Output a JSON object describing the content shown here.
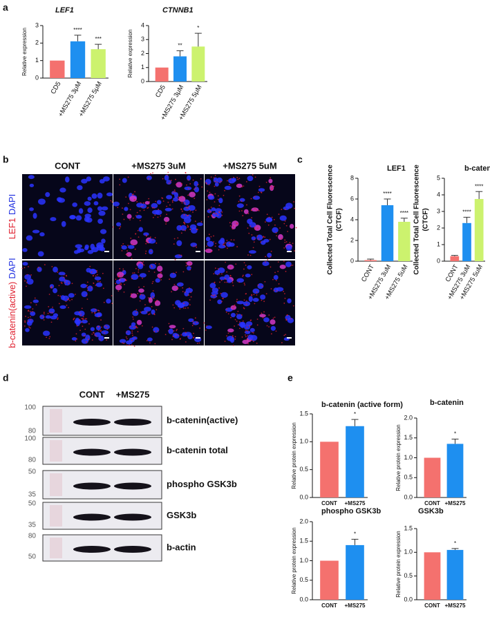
{
  "panels": [
    "a",
    "b",
    "c",
    "d",
    "e"
  ],
  "microscopy": {
    "columns": [
      "CONT",
      "+MS275 3uM",
      "+MS275 5uM"
    ],
    "rows": [
      [
        "LEF1",
        "DAPI"
      ],
      [
        "b-catenin(active)",
        "DAPI"
      ]
    ]
  },
  "blot": {
    "columns": [
      "CONT",
      "+MS275"
    ],
    "rows": [
      {
        "label": "b-catenin(active)",
        "markers": [
          100,
          80
        ]
      },
      {
        "label": "b-catenin total",
        "markers": [
          100,
          80
        ]
      },
      {
        "label": "phospho GSK3b",
        "markers": [
          50,
          35
        ]
      },
      {
        "label": "GSK3b",
        "markers": [
          50,
          35
        ]
      },
      {
        "label": "b-actin",
        "markers": [
          80,
          50
        ]
      }
    ]
  },
  "chart_data": [
    {
      "type": "bar",
      "title": "LEF1",
      "title_italic": true,
      "ylabel": "Relative expression",
      "categories": [
        "CD5",
        "+MS275 3μM",
        "+MS275 5μM"
      ],
      "values": [
        1,
        2.1,
        1.65
      ],
      "errors": [
        0,
        0.35,
        0.28
      ],
      "annotations": [
        null,
        "****",
        "***"
      ],
      "colors": [
        "#f4716e",
        "#1e8ff0",
        "#ccf26e"
      ],
      "ylim": [
        0,
        3
      ],
      "yticks": [
        0,
        1,
        2,
        3
      ]
    },
    {
      "type": "bar",
      "title": "CTNNB1",
      "title_italic": true,
      "ylabel": "Relative expression",
      "categories": [
        "CD5",
        "+MS275 3μM",
        "+MS275 5μM"
      ],
      "values": [
        1,
        1.8,
        2.5
      ],
      "errors": [
        0,
        0.4,
        0.95
      ],
      "annotations": [
        null,
        "**",
        "*"
      ],
      "colors": [
        "#f4716e",
        "#1e8ff0",
        "#ccf26e"
      ],
      "ylim": [
        0,
        4
      ],
      "yticks": [
        0,
        1,
        2,
        3,
        4
      ]
    },
    {
      "type": "bar",
      "title": "LEF1",
      "title_italic": false,
      "ylabel": [
        "Collected Total Cell Fluorescence",
        "(CTCF)"
      ],
      "categories": [
        "CONT",
        "+MS275 3uM",
        "+MS275 5uM"
      ],
      "values": [
        0.1,
        5.4,
        3.8
      ],
      "errors": [
        0.1,
        0.6,
        0.35
      ],
      "annotations": [
        null,
        "****",
        "****"
      ],
      "colors": [
        "#f4716e",
        "#1e8ff0",
        "#ccf26e"
      ],
      "ylim": [
        0,
        8
      ],
      "yticks": [
        0,
        2,
        4,
        6,
        8
      ]
    },
    {
      "type": "bar",
      "title": "b-catenin",
      "title_italic": false,
      "ylabel": [
        "Collected Total Cell Fluorescence",
        "(CTCF)"
      ],
      "categories": [
        "CONT",
        "+MS275 3uM",
        "+MS275 5uM"
      ],
      "values": [
        0.3,
        2.3,
        3.75
      ],
      "errors": [
        0.05,
        0.35,
        0.45
      ],
      "annotations": [
        null,
        "****",
        "****"
      ],
      "colors": [
        "#f4716e",
        "#1e8ff0",
        "#ccf26e"
      ],
      "ylim": [
        0,
        5
      ],
      "yticks": [
        0,
        1,
        2,
        3,
        4,
        5
      ]
    },
    {
      "type": "bar",
      "title": "b-catenin (active form)",
      "title_italic": false,
      "ylabel": "Relative protein expression",
      "categories": [
        "CONT",
        "+MS275"
      ],
      "values": [
        1,
        1.28
      ],
      "errors": [
        0,
        0.12
      ],
      "annotations": [
        null,
        "*"
      ],
      "colors": [
        "#f4716e",
        "#1e8ff0"
      ],
      "ylim": [
        0,
        1.5
      ],
      "yticks": [
        {
          "value": 0,
          "label": "0.0"
        },
        0.5,
        {
          "value": 1,
          "label": "1.0"
        },
        1.5
      ]
    },
    {
      "type": "bar",
      "title": "b-catenin",
      "title_italic": false,
      "ylabel": "Relative protein expression",
      "categories": [
        "CONT",
        "+MS275"
      ],
      "values": [
        1,
        1.35
      ],
      "errors": [
        0,
        0.12
      ],
      "annotations": [
        null,
        "*"
      ],
      "colors": [
        "#f4716e",
        "#1e8ff0"
      ],
      "ylim": [
        0,
        2
      ],
      "yticks": [
        {
          "value": 0,
          "label": "0.0"
        },
        0.5,
        {
          "value": 1,
          "label": "1.0"
        },
        1.5,
        {
          "value": 2,
          "label": "2.0"
        }
      ]
    },
    {
      "type": "bar",
      "title": "phospho GSK3b",
      "title_italic": false,
      "ylabel": "Relative protein expression",
      "categories": [
        "CONT",
        "+MS275"
      ],
      "values": [
        1,
        1.4
      ],
      "errors": [
        0,
        0.15
      ],
      "annotations": [
        null,
        "*"
      ],
      "colors": [
        "#f4716e",
        "#1e8ff0"
      ],
      "ylim": [
        0,
        2
      ],
      "yticks": [
        {
          "value": 0,
          "label": "0.0"
        },
        0.5,
        {
          "value": 1,
          "label": "1.0"
        },
        1.5,
        {
          "value": 2,
          "label": "2.0"
        }
      ]
    },
    {
      "type": "bar",
      "title": "GSK3b",
      "title_italic": false,
      "ylabel": "Relative protein expression",
      "categories": [
        "CONT",
        "+MS275"
      ],
      "values": [
        1,
        1.05
      ],
      "errors": [
        0,
        0.03
      ],
      "annotations": [
        null,
        "*"
      ],
      "colors": [
        "#f4716e",
        "#1e8ff0"
      ],
      "ylim": [
        0,
        1.5
      ],
      "yticks": [
        {
          "value": 0,
          "label": "0.0"
        },
        0.5,
        {
          "value": 1,
          "label": "1.0"
        },
        1.5
      ]
    }
  ]
}
